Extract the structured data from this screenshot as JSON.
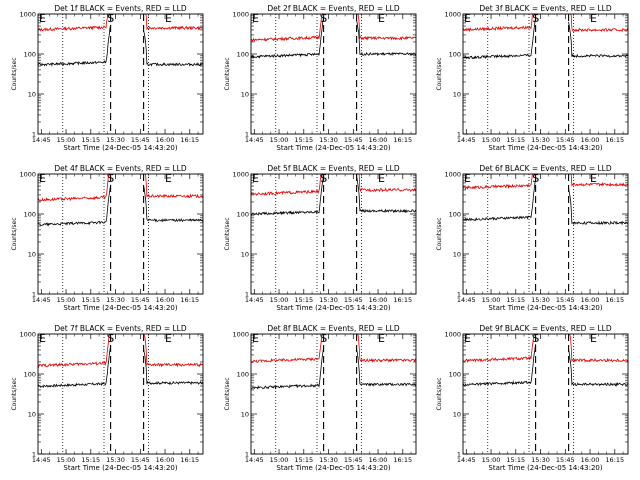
{
  "chart_data": {
    "type": "line",
    "layout": "3x3 grid",
    "ylim": [
      1,
      1000
    ],
    "yscale": "log",
    "ytick_labels": [
      "1",
      "10",
      "100",
      "1000"
    ],
    "ylabel": "Counts/sec",
    "xlabel": "Start Time (24-Dec-05 14:43:20)",
    "xlim": [
      "14:43",
      "16:23"
    ],
    "xtick_labels": [
      "14:45",
      "15:00",
      "15:15",
      "15:30",
      "15:45",
      "16:00",
      "16:15"
    ],
    "series_colors": {
      "events": "#000000",
      "lld": "#e00000"
    },
    "markers": [
      {
        "label": "E",
        "time": "14:43"
      },
      {
        "label": "S",
        "time": "15:25"
      },
      {
        "label": "E",
        "time": "16:00"
      }
    ],
    "dotted_lines": [
      "14:58",
      "15:23",
      "15:50"
    ],
    "dashed_lines": [
      "15:27",
      "15:47"
    ],
    "gap": [
      "15:27",
      "15:47"
    ],
    "panels": [
      {
        "title": "Det 1f BLACK = Events, RED = LLD",
        "events": {
          "pre": 60,
          "post": 55
        },
        "lld": {
          "pre": 450,
          "post": 450
        }
      },
      {
        "title": "Det 2f BLACK = Events, RED = LLD",
        "events": {
          "pre": 95,
          "post": 100
        },
        "lld": {
          "pre": 250,
          "post": 250
        }
      },
      {
        "title": "Det 3f BLACK = Events, RED = LLD",
        "events": {
          "pre": 90,
          "post": 90
        },
        "lld": {
          "pre": 450,
          "post": 400
        }
      },
      {
        "title": "Det 4f BLACK = Events, RED = LLD",
        "events": {
          "pre": 60,
          "post": 70
        },
        "lld": {
          "pre": 250,
          "post": 280
        }
      },
      {
        "title": "Det 5f BLACK = Events, RED = LLD",
        "events": {
          "pre": 110,
          "post": 120
        },
        "lld": {
          "pre": 350,
          "post": 400
        }
      },
      {
        "title": "Det 6f BLACK = Events, RED = LLD",
        "events": {
          "pre": 80,
          "post": 60
        },
        "lld": {
          "pre": 500,
          "post": 550
        }
      },
      {
        "title": "Det 7f BLACK = Events, RED = LLD",
        "events": {
          "pre": 55,
          "post": 60
        },
        "lld": {
          "pre": 180,
          "post": 170
        }
      },
      {
        "title": "Det 8f BLACK = Events, RED = LLD",
        "events": {
          "pre": 50,
          "post": 55
        },
        "lld": {
          "pre": 230,
          "post": 220
        }
      },
      {
        "title": "Det 9f BLACK = Events, RED = LLD",
        "events": {
          "pre": 60,
          "post": 55
        },
        "lld": {
          "pre": 240,
          "post": 220
        }
      }
    ]
  }
}
